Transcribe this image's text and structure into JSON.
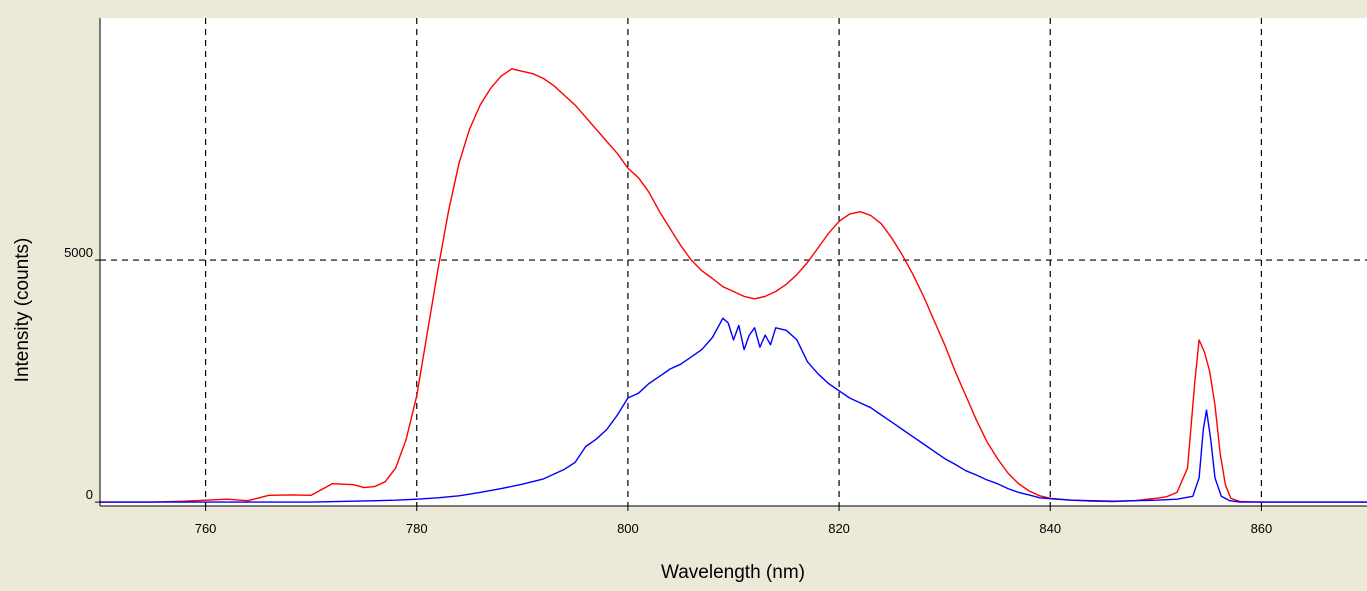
{
  "window": {
    "background": "#ece9d8",
    "plot_background": "#ffffff"
  },
  "chart_data": {
    "type": "line",
    "title": "",
    "xlabel": "Wavelength (nm)",
    "ylabel": "Intensity (counts)",
    "xlim": [
      750,
      870
    ],
    "ylim": [
      -80,
      10000
    ],
    "xticks": [
      760,
      780,
      800,
      820,
      840,
      860
    ],
    "yticks": [
      0,
      5000
    ],
    "grid": true,
    "series": [
      {
        "color": "#ff0000",
        "points": [
          [
            750,
            0
          ],
          [
            755,
            0
          ],
          [
            758,
            20
          ],
          [
            760,
            40
          ],
          [
            762,
            60
          ],
          [
            764,
            30
          ],
          [
            766,
            140
          ],
          [
            768,
            150
          ],
          [
            770,
            140
          ],
          [
            772,
            380
          ],
          [
            774,
            360
          ],
          [
            775,
            300
          ],
          [
            776,
            320
          ],
          [
            777,
            420
          ],
          [
            778,
            700
          ],
          [
            779,
            1300
          ],
          [
            780,
            2200
          ],
          [
            781,
            3500
          ],
          [
            782,
            4800
          ],
          [
            783,
            6000
          ],
          [
            784,
            7000
          ],
          [
            785,
            7700
          ],
          [
            786,
            8200
          ],
          [
            787,
            8550
          ],
          [
            788,
            8800
          ],
          [
            789,
            8950
          ],
          [
            790,
            8900
          ],
          [
            791,
            8850
          ],
          [
            792,
            8750
          ],
          [
            793,
            8600
          ],
          [
            794,
            8400
          ],
          [
            795,
            8200
          ],
          [
            796,
            7950
          ],
          [
            797,
            7700
          ],
          [
            798,
            7450
          ],
          [
            799,
            7200
          ],
          [
            800,
            6900
          ],
          [
            801,
            6700
          ],
          [
            802,
            6400
          ],
          [
            803,
            6000
          ],
          [
            804,
            5650
          ],
          [
            805,
            5300
          ],
          [
            806,
            5000
          ],
          [
            807,
            4780
          ],
          [
            808,
            4620
          ],
          [
            809,
            4450
          ],
          [
            810,
            4350
          ],
          [
            811,
            4250
          ],
          [
            812,
            4200
          ],
          [
            813,
            4250
          ],
          [
            814,
            4350
          ],
          [
            815,
            4500
          ],
          [
            816,
            4700
          ],
          [
            817,
            4950
          ],
          [
            818,
            5250
          ],
          [
            819,
            5550
          ],
          [
            820,
            5800
          ],
          [
            821,
            5950
          ],
          [
            822,
            6000
          ],
          [
            823,
            5920
          ],
          [
            824,
            5750
          ],
          [
            825,
            5450
          ],
          [
            826,
            5100
          ],
          [
            827,
            4700
          ],
          [
            828,
            4250
          ],
          [
            829,
            3750
          ],
          [
            830,
            3250
          ],
          [
            831,
            2700
          ],
          [
            832,
            2200
          ],
          [
            833,
            1700
          ],
          [
            834,
            1250
          ],
          [
            835,
            900
          ],
          [
            836,
            600
          ],
          [
            837,
            380
          ],
          [
            838,
            230
          ],
          [
            839,
            130
          ],
          [
            840,
            80
          ],
          [
            842,
            40
          ],
          [
            844,
            20
          ],
          [
            846,
            10
          ],
          [
            848,
            30
          ],
          [
            850,
            80
          ],
          [
            851,
            110
          ],
          [
            852,
            200
          ],
          [
            853,
            700
          ],
          [
            853.7,
            2500
          ],
          [
            854.1,
            3350
          ],
          [
            854.6,
            3100
          ],
          [
            855.1,
            2700
          ],
          [
            855.6,
            2000
          ],
          [
            856.1,
            1000
          ],
          [
            856.6,
            350
          ],
          [
            857.1,
            80
          ],
          [
            858,
            10
          ],
          [
            860,
            0
          ],
          [
            870,
            0
          ]
        ]
      },
      {
        "color": "#0000ff",
        "points": [
          [
            750,
            0
          ],
          [
            770,
            0
          ],
          [
            774,
            20
          ],
          [
            778,
            40
          ],
          [
            780,
            60
          ],
          [
            782,
            90
          ],
          [
            784,
            130
          ],
          [
            786,
            200
          ],
          [
            788,
            280
          ],
          [
            790,
            370
          ],
          [
            792,
            480
          ],
          [
            794,
            680
          ],
          [
            795,
            820
          ],
          [
            796,
            1150
          ],
          [
            797,
            1300
          ],
          [
            798,
            1500
          ],
          [
            799,
            1800
          ],
          [
            800,
            2150
          ],
          [
            801,
            2250
          ],
          [
            802,
            2450
          ],
          [
            803,
            2600
          ],
          [
            804,
            2750
          ],
          [
            805,
            2850
          ],
          [
            806,
            3000
          ],
          [
            807,
            3150
          ],
          [
            808,
            3400
          ],
          [
            809,
            3800
          ],
          [
            809.5,
            3700
          ],
          [
            810,
            3350
          ],
          [
            810.5,
            3650
          ],
          [
            811,
            3150
          ],
          [
            811.5,
            3450
          ],
          [
            812,
            3600
          ],
          [
            812.5,
            3200
          ],
          [
            813,
            3450
          ],
          [
            813.5,
            3250
          ],
          [
            814,
            3600
          ],
          [
            815,
            3550
          ],
          [
            816,
            3350
          ],
          [
            817,
            2900
          ],
          [
            818,
            2650
          ],
          [
            819,
            2450
          ],
          [
            820,
            2300
          ],
          [
            821,
            2150
          ],
          [
            822,
            2050
          ],
          [
            823,
            1950
          ],
          [
            824,
            1800
          ],
          [
            825,
            1650
          ],
          [
            826,
            1500
          ],
          [
            827,
            1350
          ],
          [
            828,
            1200
          ],
          [
            829,
            1050
          ],
          [
            830,
            900
          ],
          [
            831,
            780
          ],
          [
            832,
            650
          ],
          [
            833,
            560
          ],
          [
            834,
            460
          ],
          [
            835,
            380
          ],
          [
            836,
            280
          ],
          [
            837,
            200
          ],
          [
            838,
            150
          ],
          [
            839,
            90
          ],
          [
            840,
            70
          ],
          [
            842,
            40
          ],
          [
            846,
            20
          ],
          [
            850,
            40
          ],
          [
            852,
            60
          ],
          [
            853.5,
            120
          ],
          [
            854.1,
            500
          ],
          [
            854.5,
            1500
          ],
          [
            854.8,
            1900
          ],
          [
            855.2,
            1300
          ],
          [
            855.6,
            500
          ],
          [
            856.2,
            120
          ],
          [
            857,
            30
          ],
          [
            858,
            0
          ],
          [
            870,
            0
          ]
        ]
      }
    ]
  }
}
